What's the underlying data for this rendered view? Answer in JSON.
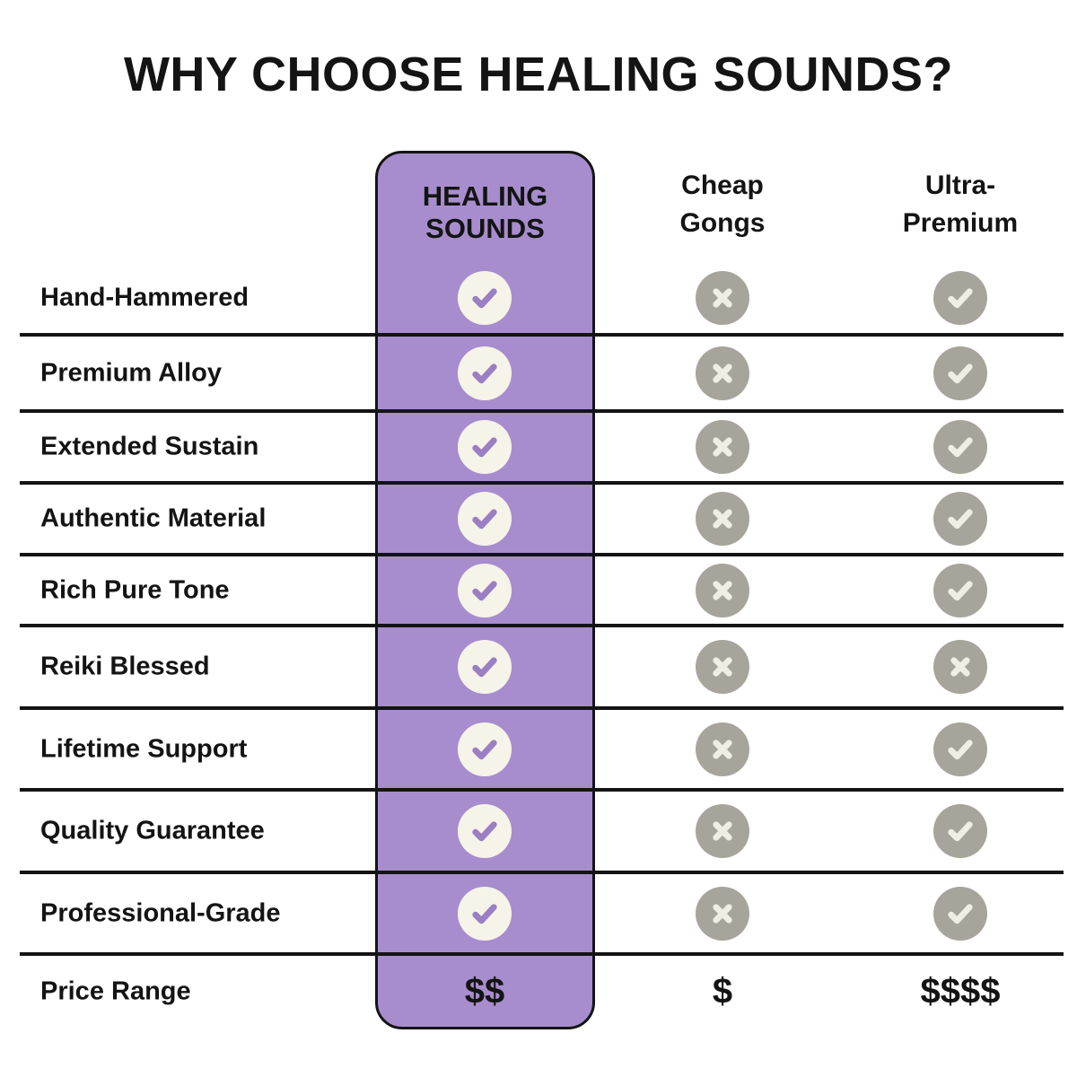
{
  "title": "WHY CHOOSE HEALING SOUNDS?",
  "columns": {
    "healing": {
      "label": "HEALING\nSOUNDS",
      "highlight": true
    },
    "cheap": {
      "label": "Cheap\nGongs",
      "highlight": false
    },
    "ultra": {
      "label": "Ultra-\nPremium",
      "highlight": false
    }
  },
  "features": [
    {
      "name": "Hand-Hammered",
      "healing": "check",
      "cheap": "cross",
      "ultra": "check"
    },
    {
      "name": "Premium Alloy",
      "healing": "check",
      "cheap": "cross",
      "ultra": "check"
    },
    {
      "name": "Extended Sustain",
      "healing": "check",
      "cheap": "cross",
      "ultra": "check"
    },
    {
      "name": "Authentic Material",
      "healing": "check",
      "cheap": "cross",
      "ultra": "check"
    },
    {
      "name": "Rich Pure Tone",
      "healing": "check",
      "cheap": "cross",
      "ultra": "check"
    },
    {
      "name": "Reiki Blessed",
      "healing": "check",
      "cheap": "cross",
      "ultra": "cross"
    },
    {
      "name": "Lifetime Support",
      "healing": "check",
      "cheap": "cross",
      "ultra": "check"
    },
    {
      "name": "Quality Guarantee",
      "healing": "check",
      "cheap": "cross",
      "ultra": "check"
    },
    {
      "name": "Professional-Grade",
      "healing": "check",
      "cheap": "cross",
      "ultra": "check"
    }
  ],
  "price": {
    "name": "Price Range",
    "healing": "$$",
    "cheap": "$",
    "ultra": "$$$$"
  },
  "colors": {
    "accent_purple": "#a78dce",
    "check_purple": "#9a7fc2",
    "cream": "#f6f3e9",
    "glyph_cream": "#f0ede3",
    "neutral_gray": "#a6a49b",
    "line": "#141414",
    "text": "#141414"
  }
}
